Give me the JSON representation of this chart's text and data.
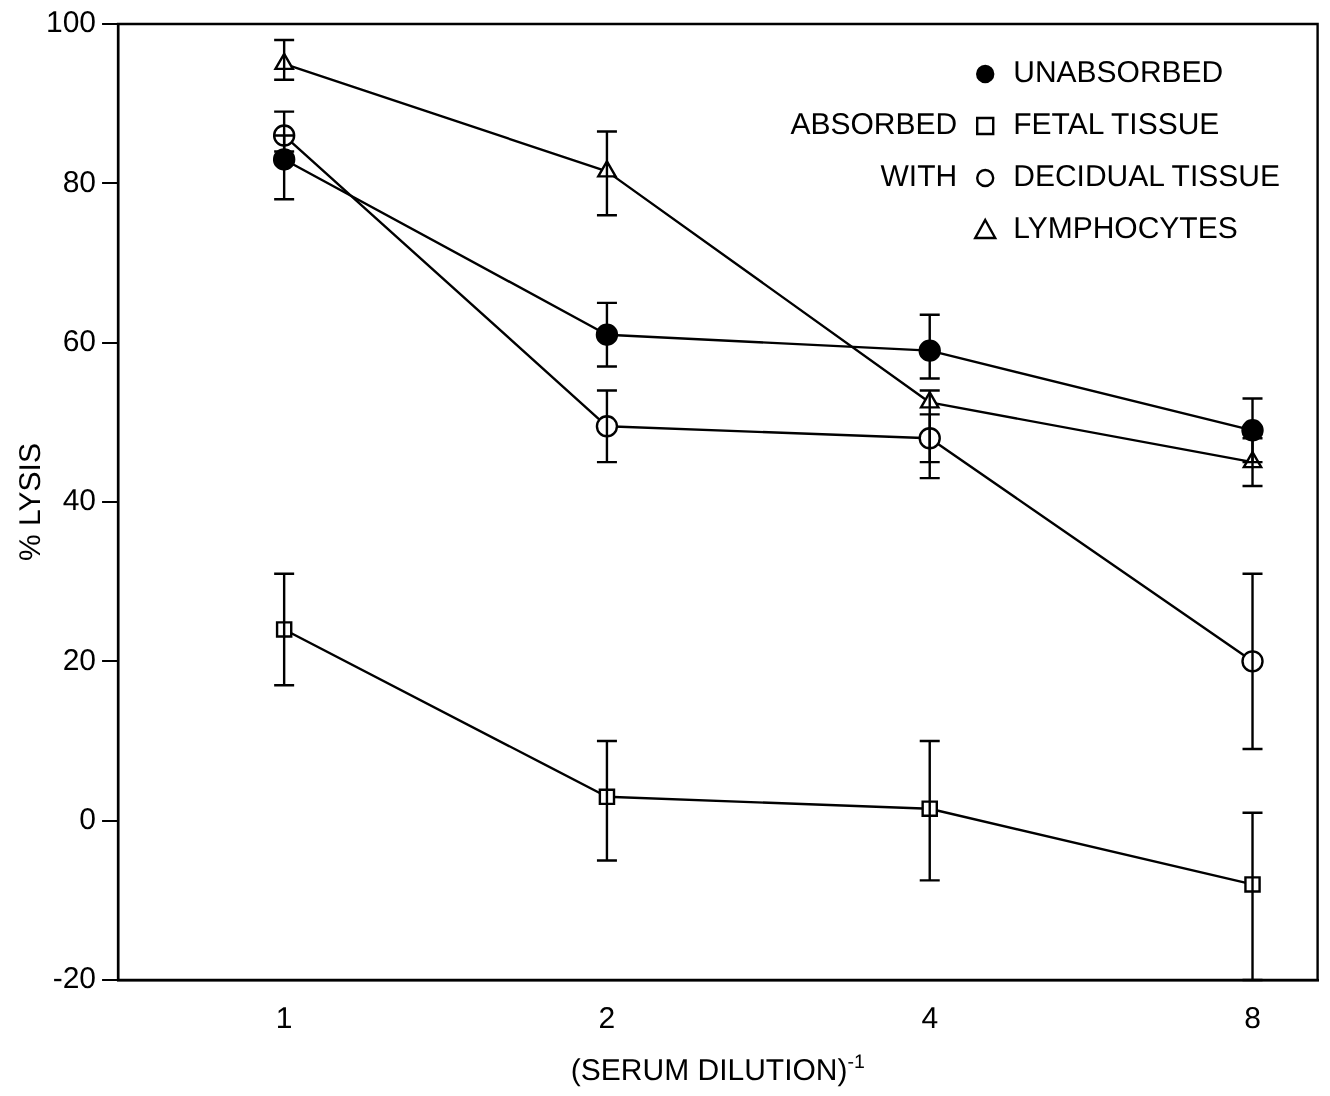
{
  "chart_data": {
    "type": "line",
    "xlabel": "(SERUM DILUTION)$^{-1}$",
    "ylabel": "% LYSIS",
    "log": "x",
    "x": [
      1,
      2,
      4,
      8
    ],
    "xlim": [
      0.7,
      9.2
    ],
    "xticks": [
      1,
      2,
      4,
      8
    ],
    "ylim": [
      -20,
      100
    ],
    "yticks": [
      -20,
      0,
      20,
      40,
      60,
      80,
      100
    ],
    "grid": false,
    "legend": "top right",
    "line_style": "solid",
    "annotations": [
      "ABSORBED",
      "WITH"
    ],
    "series": [
      {
        "name": "UNABSORBED",
        "color": "#000000",
        "marker": "circle",
        "values": [
          83,
          61,
          59,
          49
        ],
        "errors": [
          [
            78,
            86
          ],
          [
            57,
            65
          ],
          [
            55.5,
            63.5
          ],
          [
            45,
            53
          ]
        ]
      },
      {
        "name": "FETAL TISSUE",
        "color": "#000000",
        "marker": "square",
        "values": [
          24,
          3,
          1.5,
          -8
        ],
        "errors": [
          [
            17,
            31
          ],
          [
            -5,
            10
          ],
          [
            -7.5,
            10
          ],
          [
            -20,
            1
          ]
        ]
      },
      {
        "name": "DECIDUAL TISSUE",
        "color": "#000000",
        "marker": "circle",
        "values": [
          86,
          49.5,
          48,
          20
        ],
        "errors": [
          [
            84,
            89
          ],
          [
            45,
            54
          ],
          [
            45,
            51
          ],
          [
            9,
            31
          ]
        ]
      },
      {
        "name": "LYMPHOCYTES",
        "color": "#000000",
        "marker": "triangle",
        "values": [
          95,
          81.5,
          52.5,
          45
        ],
        "errors": [
          [
            93,
            98
          ],
          [
            76,
            86.5
          ],
          [
            43,
            54
          ],
          [
            42,
            48
          ]
        ]
      }
    ]
  }
}
